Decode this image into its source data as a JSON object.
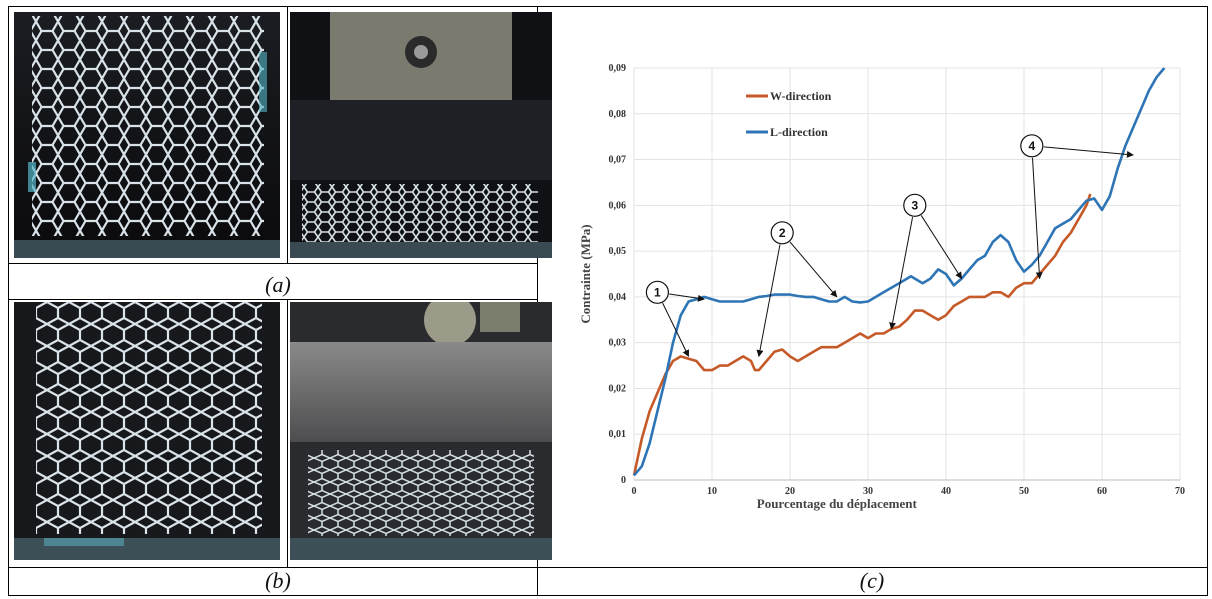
{
  "captions": {
    "a": "(a)",
    "b": "(b)",
    "c": "(c)"
  },
  "photos": {
    "a_left": "honeycomb-sample-uncompressed",
    "a_right": "honeycomb-sample-compressed",
    "b_left": "honeycomb-sample-uncompressed",
    "b_right": "honeycomb-sample-compressed"
  },
  "chart_data": {
    "type": "line",
    "title": "",
    "xlabel": "Pourcentage du déplacement",
    "ylabel": "Contrainte (MPa)",
    "xlim": [
      0,
      70
    ],
    "ylim": [
      0,
      0.09
    ],
    "xticks": [
      0,
      10,
      20,
      30,
      40,
      50,
      60,
      70
    ],
    "yticks": [
      0,
      0.01,
      0.02,
      0.03,
      0.04,
      0.05,
      0.06,
      0.07,
      0.08,
      0.09
    ],
    "ytick_labels": [
      "0",
      "0,01",
      "0,02",
      "0,03",
      "0,04",
      "0,05",
      "0,06",
      "0,07",
      "0,08",
      "0,09"
    ],
    "xtick_labels": [
      "0",
      "10",
      "20",
      "30",
      "40",
      "50",
      "60",
      "70"
    ],
    "grid": true,
    "legend_position": "top-left",
    "series": [
      {
        "name": "W-direction",
        "color": "#c55a28",
        "points": [
          [
            0,
            0.001
          ],
          [
            1,
            0.009
          ],
          [
            2,
            0.015
          ],
          [
            3,
            0.019
          ],
          [
            4,
            0.023
          ],
          [
            5,
            0.026
          ],
          [
            6,
            0.027
          ],
          [
            7,
            0.0265
          ],
          [
            8,
            0.026
          ],
          [
            9,
            0.024
          ],
          [
            10,
            0.024
          ],
          [
            11,
            0.025
          ],
          [
            12,
            0.025
          ],
          [
            13,
            0.026
          ],
          [
            14,
            0.027
          ],
          [
            15,
            0.026
          ],
          [
            15.5,
            0.024
          ],
          [
            16,
            0.024
          ],
          [
            17,
            0.026
          ],
          [
            18,
            0.028
          ],
          [
            19,
            0.0285
          ],
          [
            20,
            0.027
          ],
          [
            21,
            0.026
          ],
          [
            22,
            0.027
          ],
          [
            23,
            0.028
          ],
          [
            24,
            0.029
          ],
          [
            25,
            0.029
          ],
          [
            26,
            0.029
          ],
          [
            27,
            0.03
          ],
          [
            28,
            0.031
          ],
          [
            29,
            0.032
          ],
          [
            30,
            0.031
          ],
          [
            31,
            0.032
          ],
          [
            32,
            0.032
          ],
          [
            33,
            0.033
          ],
          [
            34,
            0.0335
          ],
          [
            35,
            0.035
          ],
          [
            36,
            0.037
          ],
          [
            37,
            0.037
          ],
          [
            38,
            0.036
          ],
          [
            39,
            0.035
          ],
          [
            40,
            0.036
          ],
          [
            41,
            0.038
          ],
          [
            42,
            0.039
          ],
          [
            43,
            0.04
          ],
          [
            44,
            0.04
          ],
          [
            45,
            0.04
          ],
          [
            46,
            0.041
          ],
          [
            47,
            0.041
          ],
          [
            48,
            0.04
          ],
          [
            49,
            0.042
          ],
          [
            50,
            0.043
          ],
          [
            51,
            0.043
          ],
          [
            52,
            0.045
          ],
          [
            53,
            0.047
          ],
          [
            54,
            0.049
          ],
          [
            55,
            0.052
          ],
          [
            56,
            0.054
          ],
          [
            57,
            0.057
          ],
          [
            58,
            0.06
          ],
          [
            58.5,
            0.0625
          ]
        ]
      },
      {
        "name": "L-direction",
        "color": "#2e75b6",
        "points": [
          [
            0,
            0.001
          ],
          [
            1,
            0.003
          ],
          [
            2,
            0.008
          ],
          [
            3,
            0.015
          ],
          [
            4,
            0.022
          ],
          [
            5,
            0.03
          ],
          [
            6,
            0.036
          ],
          [
            7,
            0.039
          ],
          [
            8,
            0.0395
          ],
          [
            9,
            0.04
          ],
          [
            10,
            0.0395
          ],
          [
            11,
            0.039
          ],
          [
            12,
            0.039
          ],
          [
            13,
            0.039
          ],
          [
            14,
            0.039
          ],
          [
            15,
            0.0395
          ],
          [
            16,
            0.04
          ],
          [
            17,
            0.0402
          ],
          [
            18,
            0.0405
          ],
          [
            19,
            0.0405
          ],
          [
            20,
            0.0405
          ],
          [
            21,
            0.0402
          ],
          [
            22,
            0.04
          ],
          [
            23,
            0.04
          ],
          [
            24,
            0.0395
          ],
          [
            25,
            0.039
          ],
          [
            26,
            0.039
          ],
          [
            27,
            0.04
          ],
          [
            28,
            0.039
          ],
          [
            29,
            0.0388
          ],
          [
            30,
            0.039
          ],
          [
            31,
            0.04
          ],
          [
            32,
            0.041
          ],
          [
            33,
            0.042
          ],
          [
            34,
            0.043
          ],
          [
            35,
            0.044
          ],
          [
            35.5,
            0.0445
          ],
          [
            36,
            0.044
          ],
          [
            37,
            0.043
          ],
          [
            38,
            0.044
          ],
          [
            39,
            0.046
          ],
          [
            40,
            0.045
          ],
          [
            41,
            0.0425
          ],
          [
            42,
            0.044
          ],
          [
            43,
            0.046
          ],
          [
            44,
            0.048
          ],
          [
            45,
            0.049
          ],
          [
            46,
            0.052
          ],
          [
            47,
            0.0535
          ],
          [
            48,
            0.052
          ],
          [
            49,
            0.048
          ],
          [
            50,
            0.0455
          ],
          [
            51,
            0.047
          ],
          [
            52,
            0.049
          ],
          [
            53,
            0.052
          ],
          [
            54,
            0.055
          ],
          [
            55,
            0.056
          ],
          [
            56,
            0.057
          ],
          [
            57,
            0.059
          ],
          [
            58,
            0.061
          ],
          [
            59,
            0.0615
          ],
          [
            60,
            0.059
          ],
          [
            61,
            0.062
          ],
          [
            62,
            0.068
          ],
          [
            63,
            0.073
          ],
          [
            64,
            0.077
          ],
          [
            65,
            0.081
          ],
          [
            66,
            0.085
          ],
          [
            67,
            0.088
          ],
          [
            68,
            0.09
          ]
        ]
      }
    ],
    "annotations": [
      {
        "label": "1",
        "circle": [
          3,
          0.041
        ],
        "targets": [
          [
            9,
            0.0395
          ],
          [
            7,
            0.027
          ]
        ]
      },
      {
        "label": "2",
        "circle": [
          19,
          0.054
        ],
        "targets": [
          [
            26,
            0.04
          ],
          [
            16,
            0.027
          ]
        ]
      },
      {
        "label": "3",
        "circle": [
          36,
          0.06
        ],
        "targets": [
          [
            42,
            0.044
          ],
          [
            33,
            0.033
          ]
        ]
      },
      {
        "label": "4",
        "circle": [
          51,
          0.073
        ],
        "targets": [
          [
            64,
            0.071
          ],
          [
            52,
            0.044
          ]
        ]
      }
    ]
  }
}
